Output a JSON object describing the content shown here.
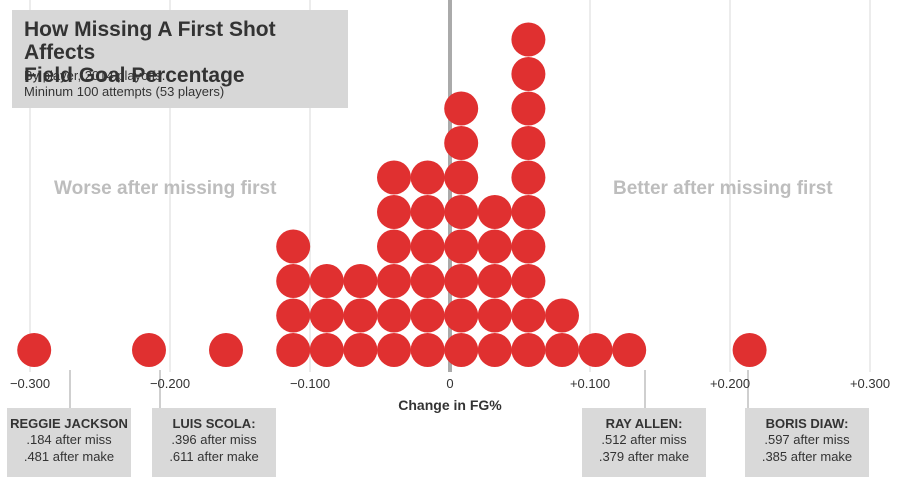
{
  "header": {
    "title_line1": "How Missing A First Shot Affects",
    "title_line2": "Field Goal Percentage",
    "subtitle_line1": "By player, 2014 playoffs.",
    "subtitle_line2": "Mininum 100 attempts (53 players)"
  },
  "labels": {
    "left": "Worse after missing first",
    "right": "Better after missing first"
  },
  "callouts": [
    {
      "name": "REGGIE JACKSON",
      "line1": ".184 after miss",
      "line2": ".481 after make"
    },
    {
      "name": "LUIS SCOLA:",
      "line1": ".396 after miss",
      "line2": ".611 after make"
    },
    {
      "name": "RAY ALLEN:",
      "line1": ".512 after miss",
      "line2": ".379 after make"
    },
    {
      "name": "BORIS DIAW:",
      "line1": ".597 after miss",
      "line2": ".385 after make"
    }
  ],
  "colors": {
    "dot": "#e03030",
    "zero_line": "#aaaaaa",
    "grid": "#e6e6e6",
    "box": "#d7d7d7"
  },
  "chart_data": {
    "type": "scatter",
    "subtype": "dot plot (each dot = one player)",
    "xlabel": "Change in FG%",
    "xlim": [
      -0.3,
      0.3
    ],
    "x_ticks": [
      -0.3,
      -0.2,
      -0.1,
      0,
      0.1,
      0.2,
      0.3
    ],
    "x_tick_labels": [
      "−0.300",
      "−0.200",
      "−0.100",
      "0",
      "+0.100",
      "+0.200",
      "+0.300"
    ],
    "bin_width": 0.024,
    "series": [
      {
        "values": [
          {
            "x": -0.297,
            "count": 1
          },
          {
            "x": -0.215,
            "count": 1
          },
          {
            "x": -0.16,
            "count": 1
          },
          {
            "x": -0.112,
            "count": 4
          },
          {
            "x": -0.088,
            "count": 3
          },
          {
            "x": -0.064,
            "count": 3
          },
          {
            "x": -0.04,
            "count": 6
          },
          {
            "x": -0.016,
            "count": 6
          },
          {
            "x": 0.008,
            "count": 8
          },
          {
            "x": 0.032,
            "count": 5
          },
          {
            "x": 0.056,
            "count": 10
          },
          {
            "x": 0.08,
            "count": 2
          },
          {
            "x": 0.104,
            "count": 1
          },
          {
            "x": 0.128,
            "count": 1
          },
          {
            "x": 0.214,
            "count": 1
          }
        ]
      }
    ],
    "grid": true
  }
}
